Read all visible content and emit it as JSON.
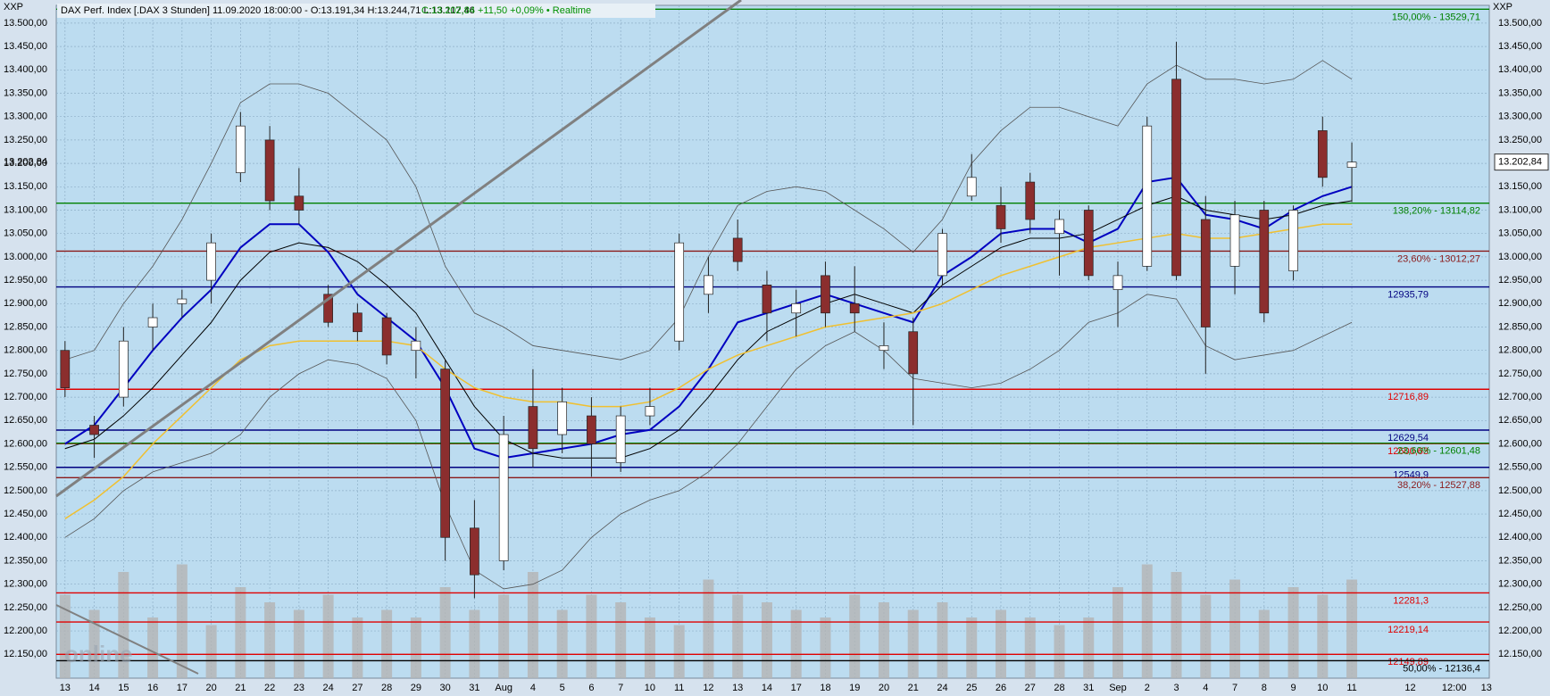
{
  "chart_data": {
    "type": "candlestick",
    "header": "DAX Perf. Index [.DAX 3 Stunden] 11.09.2020 18:00:00 - O:13.191,34 H:13.244,71 L:13.117,46",
    "header_change": "C:13.202,84 +11,50 +0,09% • Realtime",
    "axis_name": "XXP",
    "watermark": "online",
    "last_price": {
      "value": 13202.84,
      "label": "13.202,84"
    },
    "categories": [
      "13",
      "14",
      "15",
      "16",
      "17",
      "20",
      "21",
      "22",
      "23",
      "24",
      "27",
      "28",
      "29",
      "30",
      "31",
      "Aug",
      "4",
      "5",
      "6",
      "7",
      "10",
      "11",
      "12",
      "13",
      "14",
      "17",
      "18",
      "19",
      "20",
      "21",
      "24",
      "25",
      "26",
      "27",
      "28",
      "31",
      "Sep",
      "2",
      "3",
      "4",
      "7",
      "8",
      "9",
      "10",
      "11"
    ],
    "future_labels": [
      "12",
      "12:00",
      "13"
    ],
    "open": [
      12800,
      12640,
      12700,
      12850,
      12900,
      12950,
      13180,
      13250,
      13130,
      12920,
      12880,
      12870,
      12800,
      12760,
      12420,
      12350,
      12680,
      12620,
      12660,
      12560,
      12660,
      12820,
      12920,
      13040,
      12940,
      12880,
      12960,
      12900,
      12800,
      12840,
      12960,
      13130,
      13110,
      13160,
      13050,
      13100,
      12930,
      12980,
      13380,
      13080,
      12980,
      13100,
      12970,
      13270,
      13191.34
    ],
    "high": [
      12820,
      12660,
      12850,
      12900,
      12930,
      13050,
      13310,
      13280,
      13190,
      12940,
      12900,
      12880,
      12850,
      12780,
      12480,
      12660,
      12760,
      12720,
      12700,
      12680,
      12720,
      13050,
      13000,
      13080,
      12970,
      12930,
      12990,
      12980,
      12860,
      12870,
      13060,
      13220,
      13150,
      13180,
      13100,
      13110,
      12990,
      13300,
      13460,
      13130,
      13120,
      13120,
      13110,
      13300,
      13244.71
    ],
    "low": [
      12700,
      12570,
      12680,
      12800,
      12870,
      12900,
      13160,
      13100,
      13070,
      12850,
      12820,
      12770,
      12740,
      12350,
      12270,
      12330,
      12550,
      12580,
      12530,
      12540,
      12640,
      12800,
      12880,
      12970,
      12820,
      12830,
      12850,
      12840,
      12760,
      12640,
      12940,
      13120,
      13030,
      13050,
      12960,
      12950,
      12850,
      12970,
      12950,
      12750,
      12920,
      12860,
      12950,
      13150,
      13117.46
    ],
    "close": [
      12720,
      12620,
      12820,
      12870,
      12910,
      13030,
      13280,
      13120,
      13100,
      12860,
      12840,
      12790,
      12820,
      12400,
      12320,
      12620,
      12590,
      12690,
      12600,
      12660,
      12680,
      13030,
      12960,
      12990,
      12880,
      12900,
      12880,
      12880,
      12810,
      12750,
      13050,
      13170,
      13060,
      13080,
      13080,
      12960,
      12960,
      13280,
      12960,
      12850,
      13090,
      12880,
      13100,
      13170,
      13202.84
    ],
    "up_color": "#ffffff",
    "down_color": "#8b2e2e",
    "lines": [
      {
        "name": "MA short",
        "color": "#0000c0",
        "width": 2,
        "values": [
          12600,
          12640,
          12720,
          12800,
          12870,
          12930,
          13020,
          13070,
          13070,
          13010,
          12920,
          12870,
          12820,
          12720,
          12590,
          12570,
          12580,
          12590,
          12600,
          12620,
          12630,
          12680,
          12760,
          12860,
          12880,
          12900,
          12920,
          12900,
          12880,
          12860,
          12960,
          13000,
          13050,
          13060,
          13060,
          13030,
          13060,
          13160,
          13170,
          13090,
          13080,
          13060,
          13100,
          13130,
          13150
        ]
      },
      {
        "name": "MA mid",
        "color": "#000000",
        "width": 1,
        "values": [
          12590,
          12610,
          12660,
          12720,
          12790,
          12860,
          12950,
          13010,
          13030,
          13020,
          12990,
          12940,
          12880,
          12780,
          12680,
          12610,
          12580,
          12570,
          12570,
          12570,
          12590,
          12630,
          12700,
          12780,
          12840,
          12870,
          12900,
          12920,
          12900,
          12880,
          12940,
          12980,
          13020,
          13040,
          13040,
          13050,
          13080,
          13110,
          13130,
          13100,
          13090,
          13080,
          13090,
          13110,
          13120
        ]
      },
      {
        "name": "MA long",
        "color": "#f0c030",
        "width": 1.5,
        "values": [
          12440,
          12480,
          12530,
          12600,
          12660,
          12720,
          12780,
          12810,
          12820,
          12820,
          12820,
          12820,
          12810,
          12760,
          12720,
          12700,
          12690,
          12690,
          12680,
          12680,
          12690,
          12720,
          12760,
          12790,
          12810,
          12830,
          12850,
          12860,
          12870,
          12880,
          12900,
          12930,
          12960,
          12980,
          13000,
          13020,
          13030,
          13040,
          13050,
          13040,
          13040,
          13050,
          13060,
          13070,
          13070
        ]
      },
      {
        "name": "Bollinger upper",
        "color": "#555555",
        "width": 0.8,
        "values": [
          12780,
          12800,
          12900,
          12980,
          13080,
          13200,
          13330,
          13370,
          13370,
          13350,
          13300,
          13250,
          13150,
          12980,
          12880,
          12850,
          12810,
          12800,
          12790,
          12780,
          12800,
          12870,
          13000,
          13110,
          13140,
          13150,
          13140,
          13100,
          13060,
          13010,
          13080,
          13200,
          13270,
          13320,
          13320,
          13300,
          13280,
          13370,
          13410,
          13380,
          13380,
          13370,
          13380,
          13420,
          13380
        ]
      },
      {
        "name": "Bollinger lower",
        "color": "#555555",
        "width": 0.8,
        "values": [
          12400,
          12440,
          12500,
          12540,
          12560,
          12580,
          12620,
          12700,
          12750,
          12780,
          12770,
          12740,
          12650,
          12470,
          12330,
          12290,
          12300,
          12330,
          12400,
          12450,
          12480,
          12500,
          12540,
          12600,
          12680,
          12760,
          12810,
          12840,
          12800,
          12740,
          12730,
          12720,
          12730,
          12760,
          12800,
          12860,
          12880,
          12920,
          12910,
          12810,
          12780,
          12790,
          12800,
          12830,
          12860
        ]
      }
    ],
    "volume": [
      55,
      45,
      70,
      40,
      75,
      35,
      60,
      50,
      45,
      55,
      40,
      45,
      40,
      60,
      45,
      55,
      70,
      45,
      55,
      50,
      40,
      35,
      65,
      55,
      50,
      45,
      40,
      55,
      50,
      45,
      50,
      40,
      45,
      40,
      35,
      40,
      60,
      75,
      70,
      55,
      65,
      45,
      60,
      55,
      65
    ],
    "volume_lim": [
      0,
      100
    ],
    "volume_color": "#b4b4b4",
    "levels": [
      {
        "value": 13529.71,
        "label": "150,00% - 13529,71",
        "color": "#008000"
      },
      {
        "value": 13114.82,
        "label": "138,20% - 13114,82",
        "color": "#008000"
      },
      {
        "value": 13012.27,
        "label": "23,60% - 13012,27",
        "color": "#8b1a1a"
      },
      {
        "value": 12935.79,
        "label": "12935,79",
        "color": "#000080"
      },
      {
        "value": 12716.89,
        "label": "12716,89",
        "color": "#e00000"
      },
      {
        "value": 12629.54,
        "label": "12629,54",
        "color": "#000080"
      },
      {
        "value": 12600.63,
        "label": "12600,63",
        "color": "#e00000"
      },
      {
        "value": 12601.48,
        "label": "23,60% - 12601,48",
        "color": "#008000"
      },
      {
        "value": 12549.9,
        "label": "12549,9",
        "color": "#000080"
      },
      {
        "value": 12527.88,
        "label": "38,20% - 12527,88",
        "color": "#8b1a1a"
      },
      {
        "value": 12281.3,
        "label": "12281,3",
        "color": "#e00000"
      },
      {
        "value": 12219.14,
        "label": "12219,14",
        "color": "#e00000"
      },
      {
        "value": 12149.89,
        "label": "12149,89",
        "color": "#e00000"
      },
      {
        "value": 12136.4,
        "label": "50,00% - 12136,4",
        "color": "#000000"
      }
    ],
    "ylim": [
      12099,
      13538
    ],
    "yticks": [
      {
        "value": 12150,
        "label": "12.150,00"
      },
      {
        "value": 12200,
        "label": "12.200,00"
      },
      {
        "value": 12250,
        "label": "12.250,00"
      },
      {
        "value": 12300,
        "label": "12.300,00"
      },
      {
        "value": 12350,
        "label": "12.350,00"
      },
      {
        "value": 12400,
        "label": "12.400,00"
      },
      {
        "value": 12450,
        "label": "12.450,00"
      },
      {
        "value": 12500,
        "label": "12.500,00"
      },
      {
        "value": 12550,
        "label": "12.550,00"
      },
      {
        "value": 12600,
        "label": "12.600,00"
      },
      {
        "value": 12650,
        "label": "12.650,00"
      },
      {
        "value": 12700,
        "label": "12.700,00"
      },
      {
        "value": 12750,
        "label": "12.750,00"
      },
      {
        "value": 12800,
        "label": "12.800,00"
      },
      {
        "value": 12850,
        "label": "12.850,00"
      },
      {
        "value": 12900,
        "label": "12.900,00"
      },
      {
        "value": 12950,
        "label": "12.950,00"
      },
      {
        "value": 13000,
        "label": "13.000,00"
      },
      {
        "value": 13050,
        "label": "13.050,00"
      },
      {
        "value": 13100,
        "label": "13.100,00"
      },
      {
        "value": 13150,
        "label": "13.150,00"
      },
      {
        "value": 13200,
        "label": "13.200,00"
      },
      {
        "value": 13250,
        "label": "13.250,00"
      },
      {
        "value": 13300,
        "label": "13.300,00"
      },
      {
        "value": 13350,
        "label": "13.350,00"
      },
      {
        "value": 13400,
        "label": "13.400,00"
      },
      {
        "value": 13450,
        "label": "13.450,00"
      },
      {
        "value": 13500,
        "label": "13.500,00"
      }
    ],
    "grid": true
  }
}
